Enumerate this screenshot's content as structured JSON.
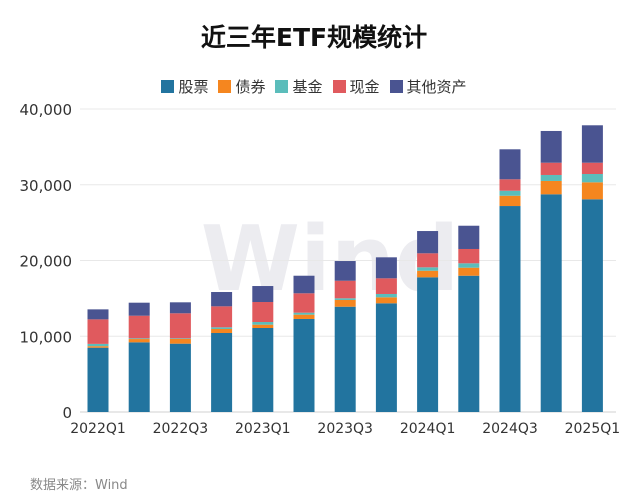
{
  "chart_data": {
    "type": "bar",
    "stacked": true,
    "title": "近三年ETF规模统计",
    "categories": [
      "2022Q1",
      "2022Q2",
      "2022Q3",
      "2022Q4",
      "2023Q1",
      "2023Q2",
      "2023Q3",
      "2023Q4",
      "2024Q1",
      "2024Q2",
      "2024Q3",
      "2024Q4",
      "2025Q1"
    ],
    "xtick_labels": [
      "2022Q1",
      "",
      "2022Q3",
      "",
      "2023Q1",
      "",
      "2023Q3",
      "",
      "2024Q1",
      "",
      "2024Q3",
      "",
      "2025Q1"
    ],
    "ylim": [
      0,
      40000
    ],
    "yticks": [
      0,
      10000,
      20000,
      30000,
      40000
    ],
    "ytick_labels": [
      "0",
      "10,000",
      "20,000",
      "30,000",
      "40,000"
    ],
    "grid": true,
    "legend_position": "top",
    "series": [
      {
        "name": "股票",
        "color": "#22749f",
        "values": [
          8490,
          9200,
          9020,
          10430,
          11090,
          12280,
          13900,
          14350,
          17780,
          17990,
          27190,
          28740,
          28080
        ]
      },
      {
        "name": "债券",
        "color": "#f5861f",
        "values": [
          200,
          430,
          620,
          530,
          440,
          570,
          890,
          790,
          870,
          1060,
          1360,
          1760,
          2240
        ]
      },
      {
        "name": "基金",
        "color": "#5bbdbb",
        "values": [
          300,
          100,
          90,
          220,
          350,
          260,
          220,
          440,
          450,
          580,
          660,
          790,
          1100
        ]
      },
      {
        "name": "现金",
        "color": "#e05a5e",
        "values": [
          3240,
          2980,
          3300,
          2770,
          2640,
          2560,
          2320,
          2070,
          1850,
          1890,
          1510,
          1620,
          1490
        ]
      },
      {
        "name": "其他资产",
        "color": "#4a5491",
        "values": [
          1320,
          1720,
          1450,
          1890,
          2110,
          2320,
          2600,
          2770,
          2940,
          3070,
          3960,
          4190,
          4940
        ]
      }
    ]
  },
  "source": "数据来源：Wind",
  "watermark": "Wind"
}
